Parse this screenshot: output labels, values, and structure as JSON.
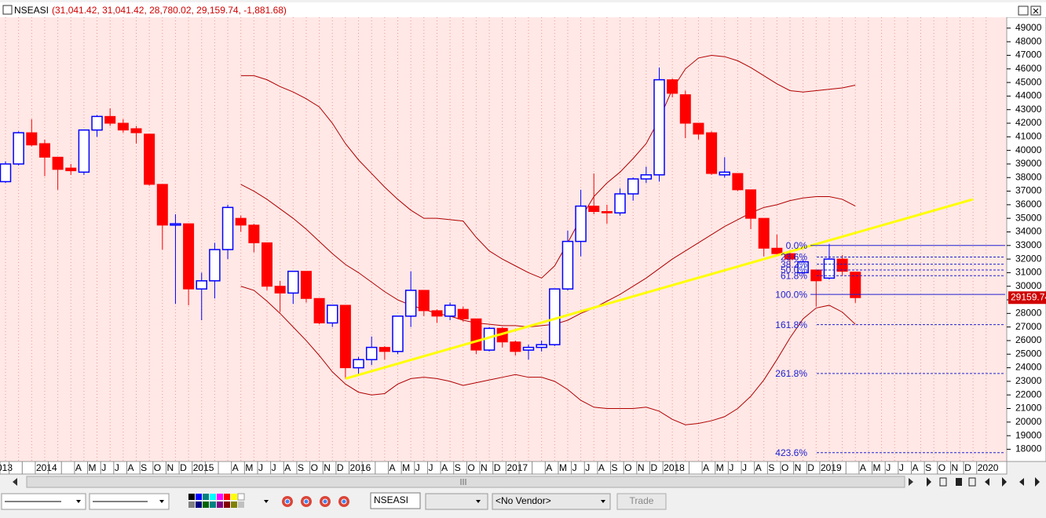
{
  "chart_data": {
    "type": "candlestick",
    "title": "NSEASI",
    "subtitle": "(31,041.42, 31,041.42, 28,780.02, 29,159.74, -1,881.68)",
    "categories": [
      "013",
      null,
      null,
      "2014",
      null,
      null,
      "A",
      "M",
      "J",
      "J",
      "A",
      "S",
      "O",
      "N",
      "D",
      "2015",
      null,
      null,
      "A",
      "M",
      "J",
      "J",
      "A",
      "S",
      "O",
      "N",
      "D",
      "2016",
      null,
      null,
      "A",
      "M",
      "J",
      "J",
      "A",
      "S",
      "O",
      "N",
      "D",
      "2017",
      null,
      null,
      "A",
      "M",
      "J",
      "J",
      "A",
      "S",
      "O",
      "N",
      "D",
      "2018",
      null,
      null,
      "A",
      "M",
      "J",
      "J",
      "A",
      "S",
      "O",
      "N",
      "D",
      "2019",
      null,
      null,
      "A",
      "M",
      "J",
      "J",
      "A",
      "S",
      "O",
      "N",
      "D",
      "2020"
    ],
    "open": [
      37700,
      39000,
      41300,
      40500,
      39500,
      38700,
      38400,
      41500,
      42500,
      42000,
      41600,
      41200,
      37500,
      34500,
      34600,
      29800,
      30400,
      32700,
      35000,
      34500,
      33200,
      30000,
      29500,
      31100,
      29100,
      27300,
      28600,
      24000,
      24600,
      25500,
      25200,
      27800,
      29700,
      28200,
      27800,
      28300,
      27600,
      25300,
      26900,
      25900,
      25300,
      25500,
      25700,
      29800,
      33300,
      35900,
      35500,
      35400,
      36800,
      37900,
      38200,
      45200,
      44100,
      42000,
      41300,
      38200,
      38300,
      37100,
      35000,
      32800,
      32400,
      31000,
      31200,
      30600,
      32000,
      31041.42,
      null,
      null,
      null,
      null,
      null,
      null,
      null,
      null,
      null,
      null
    ],
    "high": [
      39200,
      41400,
      42300,
      40800,
      39500,
      39000,
      41500,
      42600,
      43100,
      42300,
      41800,
      41200,
      37500,
      35300,
      34600,
      31000,
      33200,
      36000,
      35200,
      34600,
      33200,
      30400,
      31100,
      31100,
      29100,
      28600,
      28600,
      24800,
      26300,
      25600,
      27800,
      31100,
      29700,
      28300,
      28800,
      28500,
      27600,
      27000,
      27000,
      26000,
      25700,
      26000,
      29800,
      34100,
      37100,
      38300,
      36000,
      37200,
      38000,
      38800,
      46100,
      45300,
      44400,
      42000,
      41400,
      39500,
      38300,
      37100,
      35000,
      33800,
      32600,
      32000,
      31200,
      33100,
      32300,
      31041.42,
      null,
      null,
      null,
      null,
      null,
      null,
      null,
      null,
      null,
      null
    ],
    "low": [
      37600,
      38900,
      40300,
      38100,
      37100,
      38200,
      38200,
      41000,
      41800,
      41300,
      40500,
      37400,
      32700,
      28700,
      28600,
      27500,
      29100,
      32000,
      34000,
      32500,
      29700,
      28100,
      28700,
      28800,
      27200,
      27000,
      23200,
      23500,
      24200,
      24600,
      25000,
      27000,
      27800,
      27300,
      27500,
      27400,
      25000,
      25200,
      25500,
      24900,
      24600,
      25200,
      25600,
      29700,
      32200,
      35300,
      34600,
      35200,
      36300,
      37600,
      37700,
      43900,
      40900,
      40800,
      38200,
      38000,
      37000,
      34200,
      32200,
      32200,
      31200,
      30900,
      28500,
      30500,
      30800,
      28780.02,
      null,
      null,
      null,
      null,
      null,
      null,
      null,
      null,
      null,
      null
    ],
    "close": [
      39000,
      41300,
      40400,
      39500,
      38600,
      38500,
      41500,
      42500,
      42000,
      41500,
      41300,
      37500,
      34500,
      34600,
      29800,
      30400,
      32700,
      35800,
      34500,
      33200,
      30000,
      29500,
      31100,
      29100,
      27300,
      28600,
      24000,
      24600,
      25500,
      25200,
      27800,
      29700,
      28200,
      27800,
      28600,
      27600,
      25300,
      26900,
      25900,
      25200,
      25500,
      25700,
      29800,
      33300,
      35900,
      35500,
      35400,
      36800,
      37900,
      38200,
      45200,
      44200,
      42000,
      41200,
      38300,
      38400,
      37100,
      35000,
      32800,
      32400,
      32000,
      31800,
      30400,
      32000,
      31100,
      29159.74,
      null,
      null,
      null,
      null,
      null,
      null,
      null,
      null,
      null,
      null
    ],
    "up_color": "#0000ff",
    "down_color": "#ff0000",
    "bands": {
      "color": "#b00000",
      "series": [
        {
          "values": [
            null,
            null,
            null,
            null,
            null,
            null,
            null,
            null,
            null,
            null,
            null,
            null,
            null,
            null,
            null,
            null,
            null,
            null,
            45500,
            45500,
            45200,
            44700,
            44300,
            43800,
            43200,
            42000,
            40500,
            39300,
            38300,
            37300,
            36400,
            35600,
            35000,
            35000,
            34900,
            34800,
            33600,
            32600,
            32000,
            31500,
            31000,
            30600,
            31500,
            33200,
            35000,
            36600,
            37600,
            38400,
            39400,
            40500,
            42300,
            44500,
            46000,
            46800,
            47000,
            46900,
            46600,
            46100,
            45500,
            44900,
            44400,
            44300,
            44400,
            44500,
            44600,
            44800,
            null,
            null,
            null,
            null,
            null,
            null,
            null,
            null,
            null,
            null
          ]
        },
        {
          "values": [
            null,
            null,
            null,
            null,
            null,
            null,
            null,
            null,
            null,
            null,
            null,
            null,
            null,
            null,
            null,
            null,
            null,
            null,
            37500,
            37000,
            36400,
            35700,
            35000,
            34200,
            33300,
            32400,
            31600,
            31000,
            30300,
            29600,
            29000,
            28600,
            28300,
            28000,
            27800,
            27500,
            27300,
            27200,
            27100,
            27100,
            27000,
            27100,
            27200,
            27500,
            28000,
            28400,
            28900,
            29400,
            30000,
            30600,
            31300,
            32000,
            32600,
            33200,
            33800,
            34400,
            34900,
            35400,
            35800,
            36000,
            36300,
            36500,
            36600,
            36600,
            36400,
            35900,
            null,
            null,
            null,
            null,
            null,
            null,
            null,
            null,
            null,
            null
          ]
        },
        {
          "values": [
            null,
            null,
            null,
            null,
            null,
            null,
            null,
            null,
            null,
            null,
            null,
            null,
            null,
            null,
            null,
            null,
            null,
            null,
            30000,
            29700,
            28900,
            28000,
            27000,
            26000,
            24900,
            23700,
            22800,
            22200,
            22000,
            22100,
            22800,
            23200,
            23300,
            23200,
            23000,
            22700,
            22900,
            23100,
            23300,
            23500,
            23300,
            23300,
            23000,
            22400,
            21600,
            21100,
            21000,
            21000,
            21000,
            21100,
            20800,
            20200,
            19800,
            19900,
            20100,
            20400,
            21000,
            21900,
            23100,
            24600,
            26200,
            27600,
            28400,
            28600,
            28100,
            27200,
            null,
            null,
            null,
            null,
            null,
            null,
            null,
            null,
            null,
            null
          ]
        }
      ]
    },
    "trendline": {
      "color": "#ffff00",
      "x": [
        26,
        74
      ],
      "y": [
        23200,
        36400
      ]
    },
    "fib": {
      "color": "#2020d0",
      "levels": [
        {
          "label": "0.0%",
          "value": 33000,
          "style": "solid"
        },
        {
          "label": "23.6%",
          "value": 32150,
          "style": "dashed"
        },
        {
          "label": "38.2%",
          "value": 31625,
          "style": "dashed"
        },
        {
          "label": "50.0%",
          "value": 31200,
          "style": "dashed"
        },
        {
          "label": "61.8%",
          "value": 30775,
          "style": "dashed"
        },
        {
          "label": "100.0%",
          "value": 29400,
          "style": "solid"
        },
        {
          "label": "161.8%",
          "value": 27175,
          "style": "dashed"
        },
        {
          "label": "261.8%",
          "value": 23575,
          "style": "dashed"
        },
        {
          "label": "423.6%",
          "value": 17750,
          "style": "dashed"
        }
      ]
    },
    "last_price_color": "#d00000",
    "ylim": [
      17100,
      49800
    ],
    "yticks": [
      18000,
      19000,
      20000,
      21000,
      22000,
      23000,
      24000,
      25000,
      26000,
      27000,
      28000,
      29000,
      30000,
      31000,
      32000,
      33000,
      34000,
      35000,
      36000,
      37000,
      38000,
      39000,
      40000,
      41000,
      42000,
      43000,
      44000,
      45000,
      46000,
      47000,
      48000,
      49000
    ],
    "background": "#ffe8e6",
    "grid": true
  },
  "toolbar": {
    "symbol": "NSEASI",
    "vendor": "<No Vendor>",
    "button": "Trade"
  }
}
